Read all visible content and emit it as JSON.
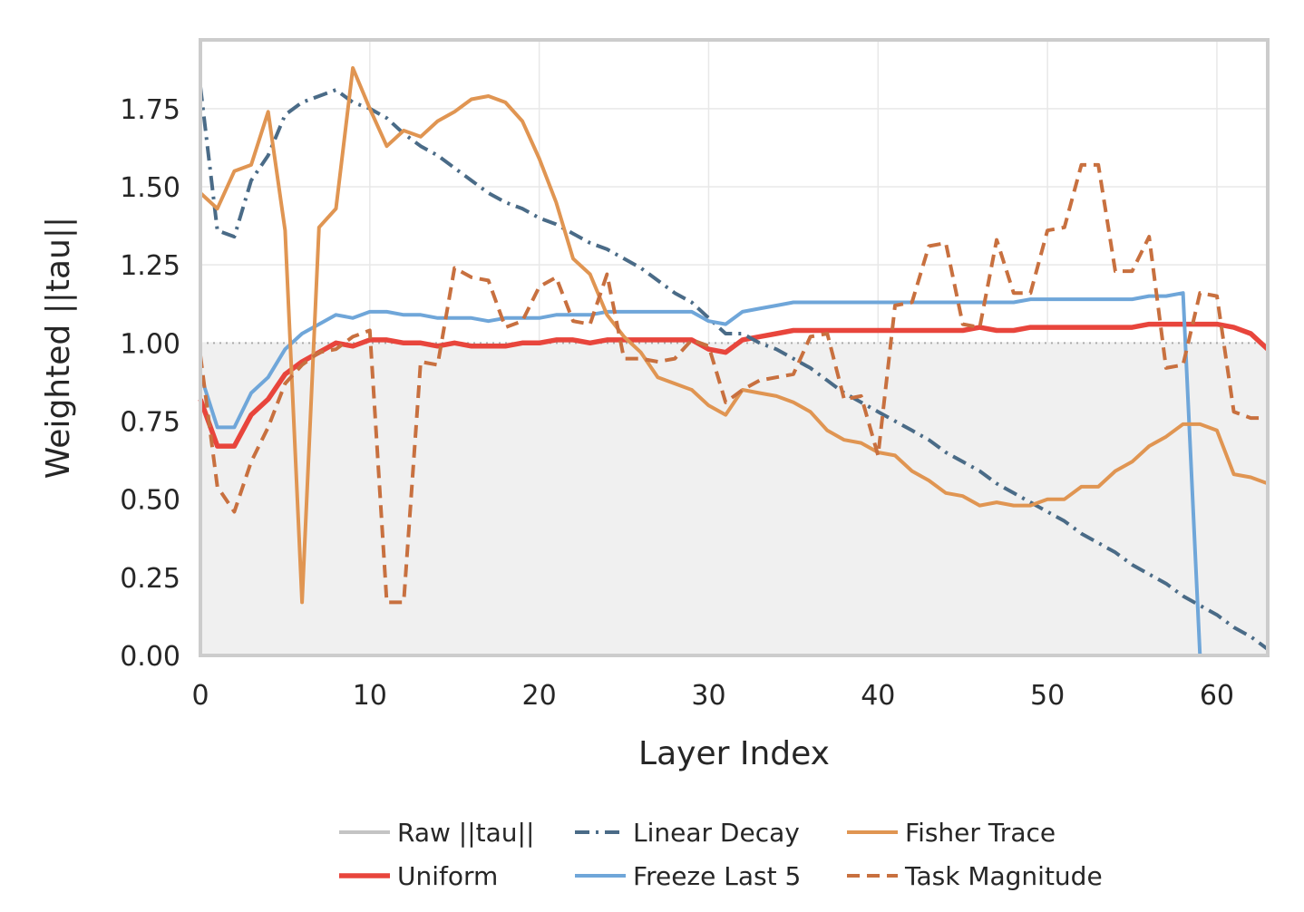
{
  "chart_data": {
    "type": "line",
    "xlabel": "Layer Index",
    "ylabel": "Weighted ||tau||",
    "xlim": [
      0,
      63
    ],
    "ylim": [
      0,
      1.97
    ],
    "xticks": [
      0,
      10,
      20,
      30,
      40,
      50,
      60
    ],
    "yticks": [
      0.0,
      0.25,
      0.5,
      0.75,
      1.0,
      1.25,
      1.5,
      1.75
    ],
    "ytick_labels": [
      "0.00",
      "0.25",
      "0.50",
      "0.75",
      "1.00",
      "1.25",
      "1.50",
      "1.75"
    ],
    "grid": true,
    "reference_line": 1.0,
    "legend_position": "bottom-center",
    "series": [
      {
        "name": "Raw ||tau||",
        "color": "#c4c4c4",
        "style": "solid",
        "fill_under": true,
        "x": [
          0,
          63
        ],
        "y": [
          0,
          0
        ]
      },
      {
        "name": "Uniform",
        "color": "#e8453c",
        "style": "solid",
        "x": [
          0,
          1,
          2,
          3,
          4,
          5,
          6,
          7,
          8,
          9,
          10,
          11,
          12,
          13,
          14,
          15,
          16,
          17,
          18,
          19,
          20,
          21,
          22,
          23,
          24,
          25,
          26,
          27,
          28,
          29,
          30,
          31,
          32,
          33,
          34,
          35,
          36,
          37,
          38,
          39,
          40,
          41,
          42,
          43,
          44,
          45,
          46,
          47,
          48,
          49,
          50,
          51,
          52,
          53,
          54,
          55,
          56,
          57,
          58,
          59,
          60,
          61,
          62,
          63
        ],
        "y": [
          0.82,
          0.67,
          0.67,
          0.77,
          0.82,
          0.9,
          0.94,
          0.97,
          1.0,
          0.99,
          1.01,
          1.01,
          1.0,
          1.0,
          0.99,
          1.0,
          0.99,
          0.99,
          0.99,
          1.0,
          1.0,
          1.01,
          1.01,
          1.0,
          1.01,
          1.01,
          1.01,
          1.01,
          1.01,
          1.01,
          0.98,
          0.97,
          1.01,
          1.02,
          1.03,
          1.04,
          1.04,
          1.04,
          1.04,
          1.04,
          1.04,
          1.04,
          1.04,
          1.04,
          1.04,
          1.04,
          1.05,
          1.04,
          1.04,
          1.05,
          1.05,
          1.05,
          1.05,
          1.05,
          1.05,
          1.05,
          1.06,
          1.06,
          1.06,
          1.06,
          1.06,
          1.05,
          1.03,
          0.98
        ]
      },
      {
        "name": "Linear Decay",
        "color": "#4a6b87",
        "style": "dashdot",
        "x": [
          0,
          1,
          2,
          3,
          4,
          5,
          6,
          7,
          8,
          9,
          10,
          11,
          12,
          13,
          14,
          15,
          16,
          17,
          18,
          19,
          20,
          21,
          22,
          23,
          24,
          25,
          26,
          27,
          28,
          29,
          30,
          31,
          32,
          33,
          34,
          35,
          36,
          37,
          38,
          39,
          40,
          41,
          42,
          43,
          44,
          45,
          46,
          47,
          48,
          49,
          50,
          51,
          52,
          53,
          54,
          55,
          56,
          57,
          58,
          59,
          60,
          61,
          62,
          63
        ],
        "y": [
          1.82,
          1.36,
          1.34,
          1.52,
          1.6,
          1.73,
          1.77,
          1.79,
          1.81,
          1.77,
          1.75,
          1.72,
          1.67,
          1.63,
          1.6,
          1.56,
          1.52,
          1.48,
          1.45,
          1.43,
          1.4,
          1.38,
          1.35,
          1.32,
          1.3,
          1.27,
          1.24,
          1.2,
          1.16,
          1.13,
          1.08,
          1.03,
          1.03,
          1.0,
          0.98,
          0.95,
          0.92,
          0.88,
          0.84,
          0.81,
          0.78,
          0.75,
          0.72,
          0.69,
          0.65,
          0.62,
          0.59,
          0.55,
          0.52,
          0.49,
          0.46,
          0.43,
          0.39,
          0.36,
          0.33,
          0.29,
          0.26,
          0.23,
          0.19,
          0.16,
          0.13,
          0.09,
          0.06,
          0.02
        ]
      },
      {
        "name": "Freeze Last 5",
        "color": "#6fa6d9",
        "style": "solid",
        "x": [
          0,
          1,
          2,
          3,
          4,
          5,
          6,
          7,
          8,
          9,
          10,
          11,
          12,
          13,
          14,
          15,
          16,
          17,
          18,
          19,
          20,
          21,
          22,
          23,
          24,
          25,
          26,
          27,
          28,
          29,
          30,
          31,
          32,
          33,
          34,
          35,
          36,
          37,
          38,
          39,
          40,
          41,
          42,
          43,
          44,
          45,
          46,
          47,
          48,
          49,
          50,
          51,
          52,
          53,
          54,
          55,
          56,
          57,
          58,
          59
        ],
        "y": [
          0.9,
          0.73,
          0.73,
          0.84,
          0.89,
          0.98,
          1.03,
          1.06,
          1.09,
          1.08,
          1.1,
          1.1,
          1.09,
          1.09,
          1.08,
          1.08,
          1.08,
          1.07,
          1.08,
          1.08,
          1.08,
          1.09,
          1.09,
          1.09,
          1.1,
          1.1,
          1.1,
          1.1,
          1.1,
          1.1,
          1.07,
          1.06,
          1.1,
          1.11,
          1.12,
          1.13,
          1.13,
          1.13,
          1.13,
          1.13,
          1.13,
          1.13,
          1.13,
          1.13,
          1.13,
          1.13,
          1.13,
          1.13,
          1.13,
          1.14,
          1.14,
          1.14,
          1.14,
          1.14,
          1.14,
          1.14,
          1.15,
          1.15,
          1.16,
          0.0
        ]
      },
      {
        "name": "Fisher Trace",
        "color": "#e09552",
        "style": "solid",
        "x": [
          0,
          1,
          2,
          3,
          4,
          5,
          6,
          7,
          8,
          9,
          10,
          11,
          12,
          13,
          14,
          15,
          16,
          17,
          18,
          19,
          20,
          21,
          22,
          23,
          24,
          25,
          26,
          27,
          28,
          29,
          30,
          31,
          32,
          33,
          34,
          35,
          36,
          37,
          38,
          39,
          40,
          41,
          42,
          43,
          44,
          45,
          46,
          47,
          48,
          49,
          50,
          51,
          52,
          53,
          54,
          55,
          56,
          57,
          58,
          59,
          60,
          61,
          62,
          63
        ],
        "y": [
          1.48,
          1.43,
          1.55,
          1.57,
          1.74,
          1.36,
          0.17,
          1.37,
          1.43,
          1.88,
          1.75,
          1.63,
          1.68,
          1.66,
          1.71,
          1.74,
          1.78,
          1.79,
          1.77,
          1.71,
          1.59,
          1.45,
          1.27,
          1.22,
          1.09,
          1.02,
          0.97,
          0.89,
          0.87,
          0.85,
          0.8,
          0.77,
          0.85,
          0.84,
          0.83,
          0.81,
          0.78,
          0.72,
          0.69,
          0.68,
          0.65,
          0.64,
          0.59,
          0.56,
          0.52,
          0.51,
          0.48,
          0.49,
          0.48,
          0.48,
          0.5,
          0.5,
          0.54,
          0.54,
          0.59,
          0.62,
          0.67,
          0.7,
          0.74,
          0.74,
          0.72,
          0.58,
          0.57,
          0.55
        ]
      },
      {
        "name": "Task Magnitude",
        "color": "#c8703f",
        "style": "dashed",
        "x": [
          0,
          1,
          2,
          3,
          4,
          5,
          6,
          7,
          8,
          9,
          10,
          11,
          12,
          13,
          14,
          15,
          16,
          17,
          18,
          19,
          20,
          21,
          22,
          23,
          24,
          25,
          26,
          27,
          28,
          29,
          30,
          31,
          32,
          33,
          34,
          35,
          36,
          37,
          38,
          39,
          40,
          41,
          42,
          43,
          44,
          45,
          46,
          47,
          48,
          49,
          50,
          51,
          52,
          53,
          54,
          55,
          56,
          57,
          58,
          59,
          60,
          61,
          62,
          63
        ],
        "y": [
          0.96,
          0.54,
          0.46,
          0.62,
          0.73,
          0.87,
          0.93,
          0.97,
          0.98,
          1.02,
          1.04,
          0.17,
          0.17,
          0.94,
          0.93,
          1.24,
          1.21,
          1.2,
          1.05,
          1.07,
          1.18,
          1.21,
          1.07,
          1.06,
          1.22,
          0.95,
          0.95,
          0.94,
          0.95,
          1.01,
          0.99,
          0.81,
          0.85,
          0.88,
          0.89,
          0.9,
          1.02,
          1.03,
          0.82,
          0.83,
          0.64,
          1.12,
          1.13,
          1.31,
          1.32,
          1.06,
          1.05,
          1.33,
          1.16,
          1.16,
          1.36,
          1.37,
          1.57,
          1.57,
          1.23,
          1.23,
          1.34,
          0.92,
          0.93,
          1.16,
          1.15,
          0.78,
          0.76,
          0.76
        ]
      }
    ]
  },
  "legend": {
    "columns": [
      [
        "Raw ||tau||",
        "Uniform"
      ],
      [
        "Linear Decay",
        "Freeze Last 5"
      ],
      [
        "Fisher Trace",
        "Task Magnitude"
      ]
    ]
  }
}
